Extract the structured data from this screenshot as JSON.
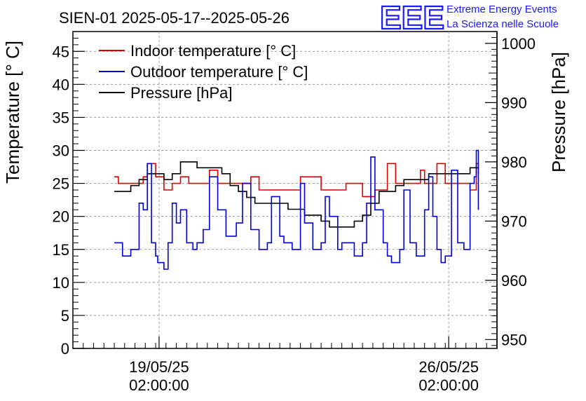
{
  "chart_data": {
    "type": "line",
    "title": "SIEN-01 2025-05-17--2025-05-26",
    "ylabel_left": "Temperature [° C]",
    "ylabel_right": "Pressure [hPa]",
    "xlabel": "",
    "ylim_left": [
      0,
      48
    ],
    "ylim_right": [
      948.5,
      1002
    ],
    "yticks_left": [
      0,
      5,
      10,
      15,
      20,
      25,
      30,
      35,
      40,
      45
    ],
    "yticks_right": [
      950,
      960,
      970,
      980,
      990,
      1000
    ],
    "x_unit": "days since 2025-05-17 00:00",
    "xlim": [
      0,
      10.25
    ],
    "x_major_ticks": [
      {
        "x": 2.0833,
        "date": "19/05/25",
        "time": "02:00:00"
      },
      {
        "x": 9.0833,
        "date": "26/05/25",
        "time": "02:00:00"
      }
    ],
    "grid": true,
    "legend_position": "top-left",
    "series": [
      {
        "name": "Indoor temperature [° C]",
        "axis": "left",
        "color": "#e00000",
        "x": [
          1.0,
          1.1,
          1.4,
          1.7,
          1.8,
          2.0,
          2.2,
          2.4,
          2.5,
          2.6,
          2.8,
          3.0,
          3.3,
          3.5,
          4.0,
          4.3,
          4.5,
          5.0,
          5.5,
          6.0,
          6.3,
          6.6,
          7.0,
          7.3,
          7.6,
          7.8,
          7.9,
          8.0,
          8.4,
          8.5,
          8.6,
          8.8,
          9.0,
          9.2,
          9.4,
          9.5,
          9.6,
          9.75,
          9.8
        ],
        "y": [
          26,
          25,
          25,
          26,
          28,
          26,
          24,
          25,
          25,
          26,
          25,
          25,
          27,
          25,
          25,
          26,
          24,
          24,
          26,
          24,
          24,
          25,
          23,
          24,
          28,
          25,
          25,
          25,
          27,
          25,
          25,
          28,
          25,
          25,
          25,
          25,
          24,
          28,
          27
        ]
      },
      {
        "name": "Outdoor temperature [° C]",
        "axis": "left",
        "color": "#0000e0",
        "x": [
          1.0,
          1.2,
          1.4,
          1.6,
          1.7,
          1.8,
          1.9,
          2.0,
          2.05,
          2.2,
          2.3,
          2.4,
          2.5,
          2.6,
          2.75,
          2.9,
          3.0,
          3.15,
          3.3,
          3.5,
          3.7,
          3.8,
          3.95,
          4.1,
          4.3,
          4.5,
          4.7,
          4.8,
          4.9,
          5.0,
          5.1,
          5.3,
          5.5,
          5.6,
          5.8,
          6.0,
          6.1,
          6.2,
          6.4,
          6.5,
          6.6,
          6.8,
          7.0,
          7.1,
          7.2,
          7.3,
          7.5,
          7.6,
          7.7,
          7.9,
          8.0,
          8.15,
          8.3,
          8.5,
          8.6,
          8.7,
          8.8,
          8.9,
          9.0,
          9.15,
          9.3,
          9.45,
          9.6,
          9.7,
          9.75,
          9.8
        ],
        "y": [
          16,
          14,
          15,
          22,
          21,
          28,
          16,
          14,
          13,
          12,
          16,
          22,
          19,
          21,
          16,
          15,
          16,
          18,
          26,
          21,
          17,
          17,
          19,
          25,
          18,
          15,
          16,
          23,
          23,
          17,
          16,
          15,
          25,
          19,
          15,
          16,
          23,
          20,
          15,
          16,
          16,
          14,
          16,
          22,
          29,
          21,
          16,
          14,
          13,
          15,
          24,
          16,
          14,
          21,
          26,
          20,
          15,
          13,
          14,
          27,
          16,
          15,
          25,
          26,
          30,
          21
        ]
      },
      {
        "name": "Pressure [hPa]",
        "axis": "right",
        "color": "#000000",
        "x": [
          1.0,
          1.2,
          1.4,
          1.6,
          1.8,
          2.0,
          2.2,
          2.4,
          2.6,
          2.8,
          3.0,
          3.2,
          3.4,
          3.6,
          3.8,
          4.0,
          4.2,
          4.4,
          4.6,
          4.8,
          5.0,
          5.2,
          5.4,
          5.6,
          5.8,
          6.0,
          6.2,
          6.4,
          6.6,
          6.8,
          7.0,
          7.2,
          7.4,
          7.6,
          7.8,
          8.0,
          8.2,
          8.4,
          8.6,
          8.8,
          9.0,
          9.2,
          9.4,
          9.6,
          9.8
        ],
        "y": [
          975,
          975,
          976,
          977,
          978,
          978,
          977,
          978,
          980,
          980,
          979,
          979,
          979,
          978,
          976,
          975,
          974,
          973,
          973,
          973,
          973,
          972,
          972,
          971,
          971,
          970,
          969,
          969,
          969,
          970,
          971,
          973,
          975,
          975,
          976,
          977,
          977,
          977,
          978,
          978,
          978,
          978,
          978,
          979,
          978
        ]
      }
    ]
  },
  "logo": {
    "mark": "EEE",
    "line1": "Extreme Energy Events",
    "line2": "La Scienza nelle Scuole"
  }
}
